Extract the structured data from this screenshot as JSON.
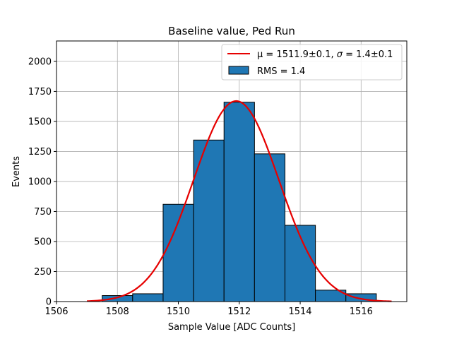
{
  "chart_data": {
    "type": "bar",
    "title": "Baseline value, Ped Run",
    "xlabel": "Sample Value [ADC Counts]",
    "ylabel": "Events",
    "xlim": [
      1506,
      1517.5
    ],
    "ylim": [
      0,
      2170
    ],
    "xticks": [
      1506,
      1508,
      1510,
      1512,
      1514,
      1516
    ],
    "yticks": [
      0,
      250,
      500,
      750,
      1000,
      1250,
      1500,
      1750,
      2000
    ],
    "grid": true,
    "legend_position": "top-right",
    "bar_color": "#1f77b4",
    "fit_color": "#e60000",
    "histogram": {
      "name": "RMS = 1.4",
      "bins": [
        {
          "left": 1507.5,
          "right": 1508.5,
          "count": 50
        },
        {
          "left": 1508.5,
          "right": 1509.5,
          "count": 65
        },
        {
          "left": 1509.5,
          "right": 1510.5,
          "count": 810
        },
        {
          "left": 1510.5,
          "right": 1511.5,
          "count": 1345
        },
        {
          "left": 1511.5,
          "right": 1512.5,
          "count": 1660
        },
        {
          "left": 1512.5,
          "right": 1513.5,
          "count": 1230
        },
        {
          "left": 1513.5,
          "right": 1514.5,
          "count": 635
        },
        {
          "left": 1514.5,
          "right": 1515.5,
          "count": 95
        },
        {
          "left": 1515.5,
          "right": 1516.5,
          "count": 65
        }
      ]
    },
    "fit": {
      "name_prefix": "μ = 1511.9±0.1, ",
      "name_sigma": "σ",
      "name_suffix": " = 1.4±0.1",
      "mu": 1511.9,
      "sigma": 1.4,
      "amplitude": 1670,
      "x_range": [
        1507,
        1517
      ]
    }
  }
}
